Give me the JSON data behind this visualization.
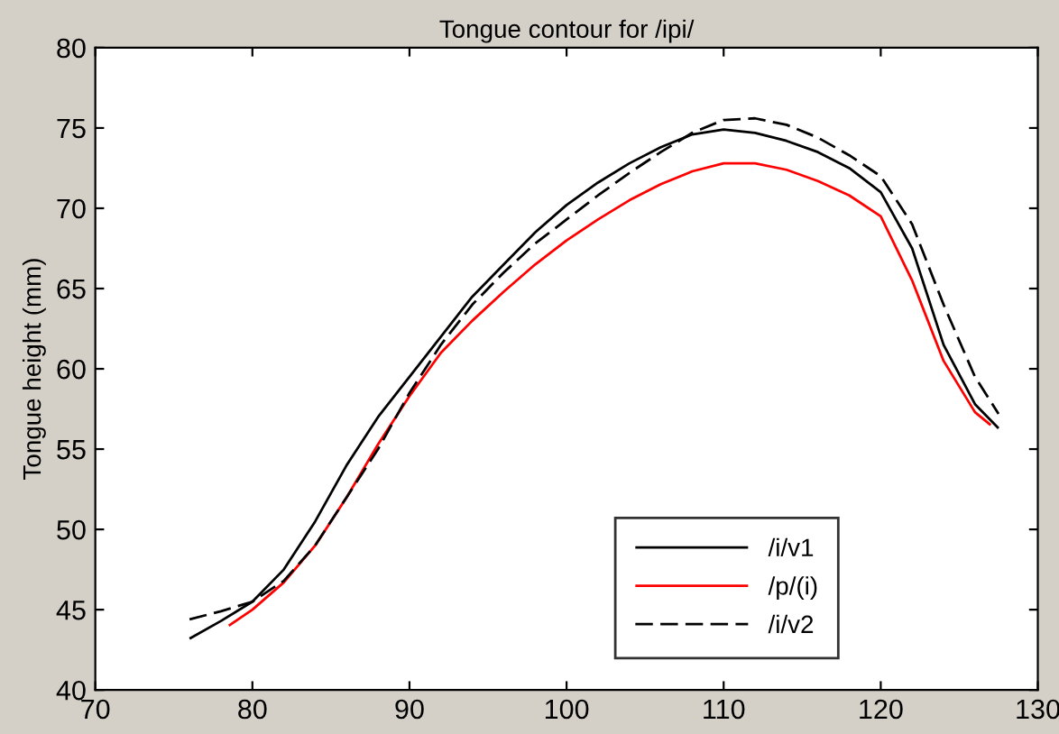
{
  "chart_data": {
    "type": "line",
    "title": "Tongue contour for /ipi/",
    "ylabel": "Tongue height (mm)",
    "xlim": [
      70,
      130
    ],
    "xticks": [
      70,
      80,
      90,
      100,
      110,
      120,
      130
    ],
    "ylim": [
      40,
      80
    ],
    "yticks": [
      40,
      45,
      50,
      55,
      60,
      65,
      70,
      75,
      80
    ],
    "grid": false,
    "legend": "bottom",
    "marker": "none",
    "series": [
      {
        "name": "/i/v1",
        "color": "#000000",
        "line_style": "solid",
        "x": [
          76,
          78,
          80,
          82,
          84,
          86,
          88,
          90,
          92,
          94,
          96,
          98,
          100,
          102,
          104,
          106,
          108,
          110,
          112,
          114,
          116,
          118,
          120,
          122,
          124,
          126,
          127.5
        ],
        "values": [
          43.2,
          44.3,
          45.5,
          47.5,
          50.5,
          54,
          57,
          59.5,
          62,
          64.5,
          66.5,
          68.5,
          70.2,
          71.6,
          72.8,
          73.8,
          74.6,
          74.9,
          74.7,
          74.2,
          73.5,
          72.5,
          71,
          67.5,
          61.5,
          57.8,
          56.3
        ]
      },
      {
        "name": "/p/(i)",
        "color": "#ff0000",
        "line_style": "solid",
        "x": [
          78.5,
          80,
          82,
          84,
          86,
          88,
          90,
          92,
          94,
          96,
          98,
          100,
          102,
          104,
          106,
          108,
          110,
          112,
          114,
          116,
          118,
          120,
          122,
          124,
          126,
          127
        ],
        "values": [
          44,
          45,
          46.7,
          49,
          52,
          55.3,
          58.3,
          61,
          63,
          64.8,
          66.5,
          68,
          69.3,
          70.5,
          71.5,
          72.3,
          72.8,
          72.8,
          72.4,
          71.7,
          70.8,
          69.5,
          65.5,
          60.5,
          57.3,
          56.5
        ]
      },
      {
        "name": "/i/v2",
        "color": "#000000",
        "line_style": "dashed",
        "x": [
          76,
          78,
          80,
          82,
          84,
          86,
          88,
          90,
          92,
          94,
          96,
          98,
          100,
          102,
          104,
          106,
          108,
          110,
          112,
          114,
          116,
          118,
          120,
          122,
          124,
          126,
          127.5
        ],
        "values": [
          44.4,
          44.9,
          45.5,
          46.8,
          49,
          52,
          55,
          58.5,
          61.5,
          64,
          66,
          67.8,
          69.3,
          70.8,
          72.2,
          73.5,
          74.7,
          75.5,
          75.6,
          75.2,
          74.4,
          73.3,
          72,
          69,
          64,
          59.5,
          57.2
        ]
      }
    ]
  }
}
